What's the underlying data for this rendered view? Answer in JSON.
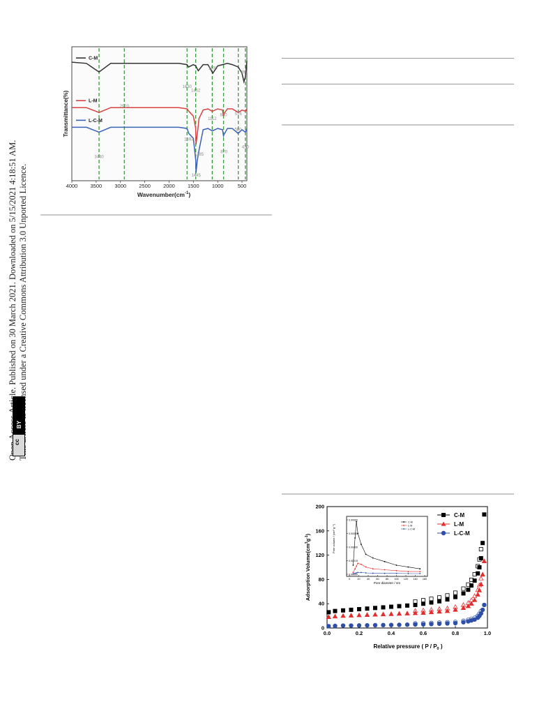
{
  "side_notice": {
    "line1": "Open Access Article. Published on 30 March 2021. Downloaded on 5/15/2021 4:18:51 AM.",
    "line2": "This article is licensed under a Creative Commons Attribution 3.0 Unported Licence.",
    "badge_cc": "cc",
    "badge_by": "BY"
  },
  "ftir": {
    "ylabel": "Transmittance(%)",
    "xlabel": "Wavenumber(cm",
    "xlabel_sup": "-1",
    "xlabel_end": ")",
    "xticks": [
      "4000",
      "3500",
      "3000",
      "2500",
      "2000",
      "1500",
      "1000",
      "500"
    ],
    "series": [
      {
        "name": "C-M",
        "color": "#333333"
      },
      {
        "name": "L-M",
        "color": "#d94040"
      },
      {
        "name": "L-C-M",
        "color": "#3a62b8"
      }
    ],
    "annotations": [
      "1100",
      "460",
      "1630",
      "1452",
      "2920",
      "1112",
      "880",
      "576",
      "1593",
      "3440",
      "1385",
      "870",
      "430",
      "1445",
      "580"
    ]
  },
  "chart_data": [
    {
      "type": "line",
      "xlabel": "Wavenumber(cm-1)",
      "ylabel": "Transmittance(%)",
      "xlim": [
        4000,
        400
      ],
      "x_ticks": [
        4000,
        3500,
        3000,
        2500,
        2000,
        1500,
        1000,
        500
      ],
      "reference_lines": [
        3440,
        2920,
        1630,
        1452,
        1112,
        880,
        576,
        430
      ],
      "series": [
        {
          "name": "C-M",
          "x": [
            4000,
            3700,
            3440,
            3200,
            2500,
            2000,
            1800,
            1630,
            1600,
            1500,
            1452,
            1400,
            1300,
            1200,
            1100,
            1000,
            900,
            800,
            700,
            576,
            500,
            460,
            430,
            400
          ],
          "y": [
            92,
            91,
            84,
            91,
            91,
            91,
            91,
            90,
            88,
            90,
            89,
            85,
            90,
            90,
            83,
            89,
            90,
            91,
            90,
            88,
            83,
            76,
            80,
            93
          ]
        },
        {
          "name": "L-M",
          "x": [
            4000,
            3700,
            3440,
            3200,
            2500,
            2000,
            1800,
            1630,
            1593,
            1500,
            1452,
            1445,
            1400,
            1385,
            1300,
            1200,
            1112,
            1000,
            900,
            880,
            870,
            800,
            700,
            576,
            500,
            430,
            400
          ],
          "y": [
            55,
            55,
            51,
            55,
            55,
            55,
            55,
            54,
            52,
            48,
            38,
            25,
            40,
            46,
            53,
            54,
            52,
            54,
            53,
            48,
            50,
            54,
            54,
            51,
            53,
            52,
            54
          ]
        },
        {
          "name": "L-C-M",
          "x": [
            4000,
            3700,
            3440,
            3200,
            2500,
            2000,
            1800,
            1630,
            1593,
            1500,
            1452,
            1445,
            1420,
            1385,
            1300,
            1200,
            1112,
            1000,
            900,
            880,
            870,
            800,
            700,
            580,
            500,
            430,
            400
          ],
          "y": [
            39,
            39,
            35,
            39,
            39,
            39,
            39,
            38,
            34,
            30,
            12,
            2,
            12,
            20,
            37,
            38,
            36,
            38,
            37,
            32,
            33,
            38,
            38,
            34,
            37,
            35,
            38
          ]
        }
      ]
    },
    {
      "type": "scatter",
      "xlabel": "Relative pressure ( P / P0 )",
      "ylabel": "Adsorption Volume(cm3g-1)",
      "xlim": [
        0.0,
        1.0
      ],
      "ylim": [
        0,
        200
      ],
      "x_ticks": [
        0.0,
        0.2,
        0.4,
        0.6,
        0.8,
        1.0
      ],
      "y_ticks": [
        0,
        40,
        80,
        120,
        160,
        200
      ],
      "legend": "top-right",
      "series": [
        {
          "name": "C-M",
          "color": "#000000",
          "marker": "square",
          "x": [
            0.01,
            0.05,
            0.1,
            0.15,
            0.2,
            0.25,
            0.3,
            0.35,
            0.4,
            0.45,
            0.5,
            0.55,
            0.6,
            0.65,
            0.7,
            0.75,
            0.8,
            0.85,
            0.88,
            0.9,
            0.92,
            0.94,
            0.95,
            0.96,
            0.97,
            0.98
          ],
          "y": [
            26,
            28,
            29,
            30,
            31,
            32,
            33,
            34,
            35,
            36,
            37,
            38,
            40,
            42,
            44,
            47,
            51,
            57,
            63,
            70,
            78,
            90,
            100,
            115,
            140,
            187
          ]
        },
        {
          "name": "L-C-M",
          "color": "#2e4fa8",
          "marker": "circle",
          "x": [
            0.01,
            0.05,
            0.1,
            0.15,
            0.2,
            0.25,
            0.3,
            0.35,
            0.4,
            0.45,
            0.5,
            0.55,
            0.6,
            0.65,
            0.7,
            0.75,
            0.8,
            0.85,
            0.88,
            0.9,
            0.92,
            0.94,
            0.95,
            0.96,
            0.97,
            0.98
          ],
          "y": [
            3,
            3.5,
            4,
            4,
            4.2,
            4.4,
            4.6,
            4.8,
            5,
            5.2,
            5.5,
            5.8,
            6,
            6.5,
            7,
            7.5,
            8,
            9.5,
            11,
            12.5,
            14,
            17,
            20,
            24,
            30,
            38
          ]
        },
        {
          "name": "L-M",
          "color": "#e52c2c",
          "marker": "triangle",
          "x": [
            0.01,
            0.05,
            0.1,
            0.15,
            0.2,
            0.25,
            0.3,
            0.35,
            0.4,
            0.45,
            0.5,
            0.55,
            0.6,
            0.65,
            0.7,
            0.75,
            0.8,
            0.85,
            0.88,
            0.9,
            0.92,
            0.94,
            0.95,
            0.96,
            0.97,
            0.98
          ],
          "y": [
            18,
            19,
            20,
            20.5,
            21,
            21.5,
            22,
            22.5,
            23,
            23.5,
            24,
            24.5,
            25,
            26,
            27,
            28,
            30,
            33,
            36,
            40,
            46,
            55,
            62,
            72,
            88,
            110
          ]
        }
      ],
      "inset": {
        "xlabel": "Pore diameter / nm",
        "ylabel": "Pore volume / (cm3 g-1)",
        "xlim": [
          0,
          160
        ],
        "ylim": [
          0,
          0.0006
        ],
        "x_ticks": [
          0,
          20,
          40,
          60,
          80,
          100,
          120,
          140,
          160
        ],
        "y_ticks": [
          "0.00000",
          "0.00015",
          "0.00030",
          "0.00045",
          "0.00060"
        ],
        "series": [
          {
            "name": "C-M",
            "x": [
              8,
              12,
              15,
              18,
              25,
              35,
              50,
              75,
              100,
              125,
              150
            ],
            "y": [
              0.0001,
              0.0004,
              0.00058,
              0.00045,
              0.00033,
              0.00022,
              0.00018,
              0.00014,
              0.0001,
              8e-05,
              6e-05
            ]
          },
          {
            "name": "L-M",
            "x": [
              8,
              12,
              15,
              18,
              25,
              35,
              50,
              75,
              100,
              125,
              150
            ],
            "y": [
              2e-05,
              6e-05,
              9e-05,
              0.00012,
              0.00011,
              8e-05,
              6e-05,
              5e-05,
              4e-05,
              3e-05,
              3e-05
            ]
          },
          {
            "name": "L-C-M",
            "x": [
              8,
              12,
              15,
              18,
              25,
              35,
              50,
              75,
              100,
              125,
              150
            ],
            "y": [
              5e-06,
              1e-05,
              1.5e-05,
              2e-05,
              2e-05,
              1.5e-05,
              1.2e-05,
              1e-05,
              1e-05,
              8e-06,
              8e-06
            ]
          }
        ]
      }
    }
  ],
  "bet": {
    "ylabel_pre": "Adsorption Volume(cm",
    "ylabel_sup1": "3",
    "ylabel_mid": "g",
    "ylabel_sup2": "-1",
    "ylabel_end": ")",
    "xlabel_pre": "Relative pressure ( P / P",
    "xlabel_sub": "0",
    "xlabel_end": " )",
    "xticks": [
      "0.0",
      "0.2",
      "0.4",
      "0.6",
      "0.8",
      "1.0"
    ],
    "yticks": [
      "0",
      "40",
      "80",
      "120",
      "160",
      "200"
    ],
    "legend": [
      "C-M",
      "L-M",
      "L-C-M"
    ],
    "inset": {
      "ylabel": "Pore volume / (cm³ g⁻¹)",
      "xlabel": "Pore diameter / nm",
      "xticks": [
        "0",
        "20",
        "40",
        "60",
        "80",
        "100",
        "120",
        "140",
        "160"
      ],
      "yticks": [
        "0.00060",
        "0.00045",
        "0.00030",
        "0.00015",
        "0.00000"
      ],
      "legend": [
        "C-M",
        "L-M",
        "L-C-M"
      ]
    }
  }
}
